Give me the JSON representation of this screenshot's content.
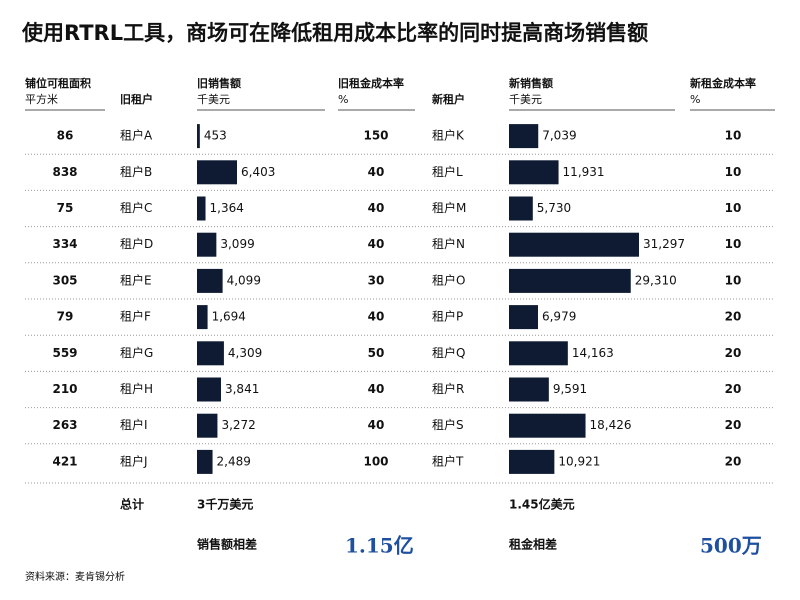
{
  "title": "使用RTRL工具，商场可在降低租用成本比率的同时提高商场销售额",
  "headers": {
    "area": [
      "铺位可租面积",
      "平方米"
    ],
    "old_tenant": "旧租户",
    "old_sales": [
      "旧销售额",
      "千美元"
    ],
    "old_rate": [
      "旧租金成本率",
      "%"
    ],
    "new_tenant": "新租户",
    "new_sales": [
      "新销售额",
      "千美元"
    ],
    "new_rate": [
      "新租金成本率",
      "%"
    ]
  },
  "rows": [
    {
      "area": 86,
      "old_tenant": "租户A",
      "old_sales": {
        "value": 453,
        "label": "453"
      },
      "old_rate": 150,
      "new_tenant": "租户K",
      "new_sales": {
        "value": 7039,
        "label": "7,039"
      },
      "new_rate": 10
    },
    {
      "area": 838,
      "old_tenant": "租户B",
      "old_sales": {
        "value": 6403,
        "label": "6,403"
      },
      "old_rate": 40,
      "new_tenant": "租户L",
      "new_sales": {
        "value": 11931,
        "label": "11,931"
      },
      "new_rate": 10
    },
    {
      "area": 75,
      "old_tenant": "租户C",
      "old_sales": {
        "value": 1364,
        "label": "1,364"
      },
      "old_rate": 40,
      "new_tenant": "租户M",
      "new_sales": {
        "value": 5730,
        "label": "5,730"
      },
      "new_rate": 10
    },
    {
      "area": 334,
      "old_tenant": "租户D",
      "old_sales": {
        "value": 3099,
        "label": "3,099"
      },
      "old_rate": 40,
      "new_tenant": "租户N",
      "new_sales": {
        "value": 31297,
        "label": "31,297"
      },
      "new_rate": 10
    },
    {
      "area": 305,
      "old_tenant": "租户E",
      "old_sales": {
        "value": 4099,
        "label": "4,099"
      },
      "old_rate": 30,
      "new_tenant": "租户O",
      "new_sales": {
        "value": 29310,
        "label": "29,310"
      },
      "new_rate": 10
    },
    {
      "area": 79,
      "old_tenant": "租户F",
      "old_sales": {
        "value": 1694,
        "label": "1,694"
      },
      "old_rate": 40,
      "new_tenant": "租户P",
      "new_sales": {
        "value": 6979,
        "label": "6,979"
      },
      "new_rate": 20
    },
    {
      "area": 559,
      "old_tenant": "租户G",
      "old_sales": {
        "value": 4309,
        "label": "4,309"
      },
      "old_rate": 50,
      "new_tenant": "租户Q",
      "new_sales": {
        "value": 14163,
        "label": "14,163"
      },
      "new_rate": 20
    },
    {
      "area": 210,
      "old_tenant": "租户H",
      "old_sales": {
        "value": 3841,
        "label": "3,841"
      },
      "old_rate": 40,
      "new_tenant": "租户R",
      "new_sales": {
        "value": 9591,
        "label": "9,591"
      },
      "new_rate": 20
    },
    {
      "area": 263,
      "old_tenant": "租户I",
      "old_sales": {
        "value": 3272,
        "label": "3,272"
      },
      "old_rate": 40,
      "new_tenant": "租户S",
      "new_sales": {
        "value": 18426,
        "label": "18,426"
      },
      "new_rate": 20
    },
    {
      "area": 421,
      "old_tenant": "租户J",
      "old_sales": {
        "value": 2489,
        "label": "2,489"
      },
      "old_rate": 100,
      "new_tenant": "租户T",
      "new_sales": {
        "value": 10921,
        "label": "10,921"
      },
      "new_rate": 20
    }
  ],
  "totals": {
    "label": "总计",
    "old_sales": "3千万美元",
    "new_sales": "1.45亿美元"
  },
  "differences": {
    "sales_label": "销售额相差",
    "sales_value": "1.15亿",
    "rent_label": "租金相差",
    "rent_value": "500万"
  },
  "source": "资料来源：麦肯锡分析"
}
